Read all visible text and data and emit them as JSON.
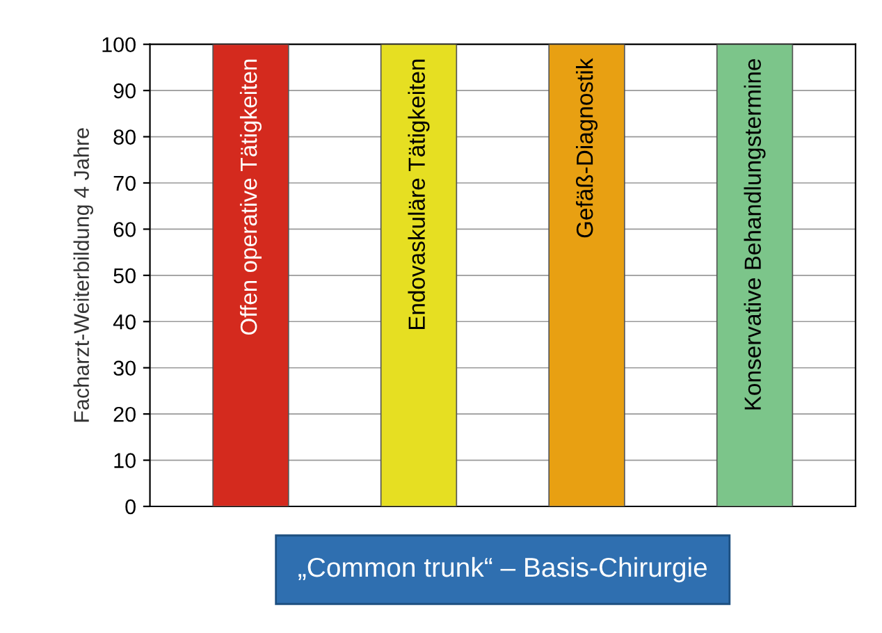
{
  "chart_data": {
    "type": "bar",
    "categories": [
      "Offen operative Tätigkeiten",
      "Endovaskuläre Tätigkeiten",
      "Gefäß-Diagnostik",
      "Konservative Behandlungstermine"
    ],
    "values": [
      100,
      100,
      100,
      100
    ],
    "colors": [
      "#d42a1e",
      "#e6df22",
      "#e8a012",
      "#7cc58a"
    ],
    "ylabel": "Facharzt-Weiterbildung 4 Jahre",
    "ylim": [
      0,
      100
    ],
    "yticks": [
      0,
      10,
      20,
      30,
      40,
      50,
      60,
      70,
      80,
      90,
      100
    ],
    "grid": "y",
    "annotations": [
      "„Common trunk“ – Basis-Chirurgie"
    ]
  }
}
